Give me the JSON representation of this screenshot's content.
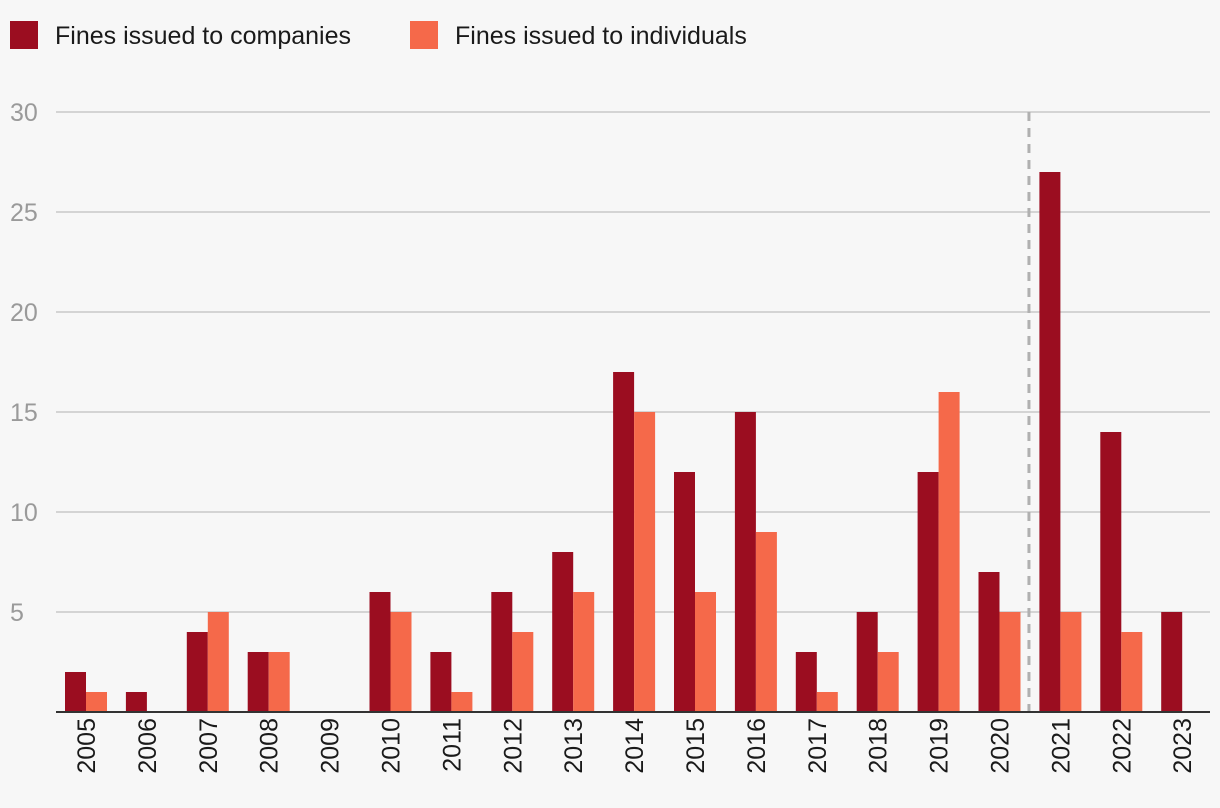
{
  "chart_data": {
    "type": "bar",
    "categories": [
      "2005",
      "2006",
      "2007",
      "2008",
      "2009",
      "2010",
      "2011",
      "2012",
      "2013",
      "2014",
      "2015",
      "2016",
      "2017",
      "2018",
      "2019",
      "2020",
      "2021",
      "2022",
      "2023"
    ],
    "series": [
      {
        "name": "Fines issued to companies",
        "color": "#9b0d20",
        "values": [
          2,
          1,
          4,
          3,
          0,
          6,
          3,
          6,
          8,
          17,
          12,
          15,
          3,
          5,
          12,
          7,
          27,
          14,
          5
        ]
      },
      {
        "name": "Fines issued to individuals",
        "color": "#f5694a",
        "values": [
          1,
          0,
          5,
          3,
          0,
          5,
          1,
          4,
          6,
          15,
          6,
          9,
          1,
          3,
          16,
          5,
          5,
          4,
          0
        ]
      }
    ],
    "ylim": [
      0,
      30
    ],
    "yticks": [
      "5",
      "10",
      "15",
      "20",
      "25",
      "30"
    ],
    "grid": true,
    "legend": "top-left",
    "marker_line": "between 2020 and 2021",
    "title": "",
    "xlabel": "",
    "ylabel": ""
  }
}
